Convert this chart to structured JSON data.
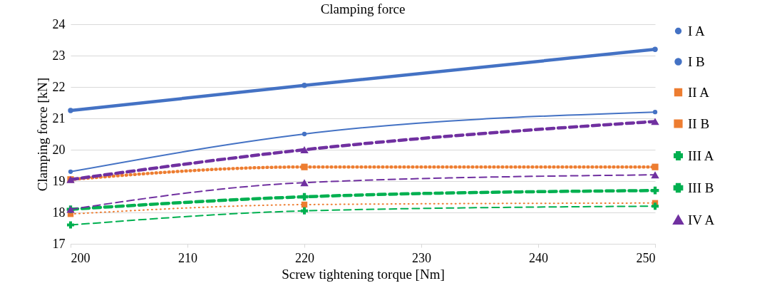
{
  "chart_data": {
    "type": "line",
    "title": "Clamping force",
    "xlabel": "Screw tightening torque [Nm]",
    "ylabel": "Clamping force [kN]",
    "x": [
      200,
      220,
      250
    ],
    "xlim": [
      200,
      250
    ],
    "xticks": [
      200,
      210,
      220,
      230,
      240,
      250
    ],
    "ylim": [
      17,
      24
    ],
    "yticks": [
      17,
      18,
      19,
      20,
      21,
      22,
      23,
      24
    ],
    "grid": "y",
    "legend": "right",
    "series": [
      {
        "name": "I A",
        "color": "#4472c4",
        "values": [
          19.3,
          20.5,
          21.2
        ],
        "line_style": "solid",
        "marker": "circle"
      },
      {
        "name": "I B",
        "color": "#4472c4",
        "values": [
          21.25,
          22.05,
          23.2
        ],
        "line_style": "solid",
        "marker": "circle"
      },
      {
        "name": "II A",
        "color": "#ed7d31",
        "values": [
          17.95,
          18.25,
          18.3
        ],
        "line_style": "dotted",
        "marker": "square"
      },
      {
        "name": "II B",
        "color": "#ed7d31",
        "values": [
          19.05,
          19.45,
          19.45
        ],
        "line_style": "dotted",
        "marker": "square"
      },
      {
        "name": "III A",
        "color": "#00b050",
        "values": [
          17.6,
          18.05,
          18.2
        ],
        "line_style": "dashed",
        "marker": "cross"
      },
      {
        "name": "III B",
        "color": "#00b050",
        "values": [
          18.1,
          18.5,
          18.7
        ],
        "line_style": "dashed",
        "marker": "cross"
      },
      {
        "name": "IV A",
        "color": "#7030a0",
        "values": [
          18.1,
          18.95,
          19.2
        ],
        "line_style": "dashed",
        "marker": "triangle"
      },
      {
        "color": "#7030a0",
        "values": [
          19.05,
          20.0,
          20.9
        ],
        "line_style": "dashed",
        "marker": "triangle"
      }
    ]
  }
}
